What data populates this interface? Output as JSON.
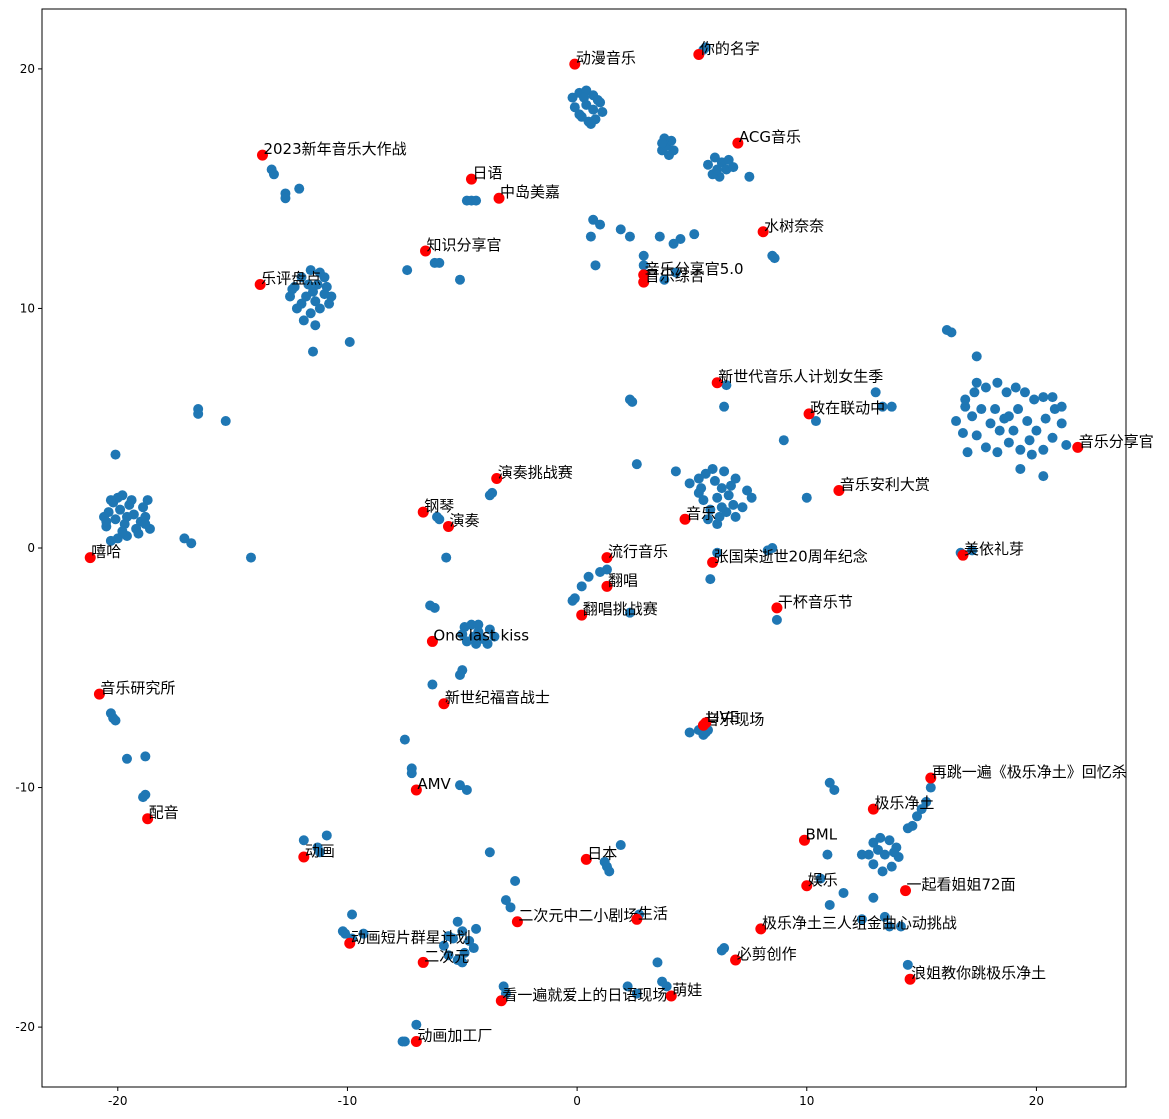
{
  "chart_data": {
    "type": "scatter",
    "title": "",
    "xlabel": "",
    "ylabel": "",
    "xlim": [
      -23.3,
      23.9
    ],
    "ylim": [
      -22.5,
      22.5
    ],
    "grid": false,
    "xticks": [
      -20,
      -10,
      0,
      10,
      20
    ],
    "yticks": [
      -20,
      -10,
      0,
      10,
      20
    ],
    "colors": {
      "points": "#1f77b4",
      "labeled": "#ff0000"
    },
    "points": [
      [
        -20.4,
        1.5
      ],
      [
        -20.2,
        1.9
      ],
      [
        -20.0,
        2.1
      ],
      [
        -19.8,
        2.2
      ],
      [
        -19.5,
        1.8
      ],
      [
        -19.3,
        1.4
      ],
      [
        -19.0,
        1.1
      ],
      [
        -19.2,
        0.8
      ],
      [
        -19.6,
        0.5
      ],
      [
        -20.0,
        0.4
      ],
      [
        -20.5,
        0.9
      ],
      [
        -20.6,
        1.3
      ],
      [
        -20.1,
        1.2
      ],
      [
        -19.7,
        1.0
      ],
      [
        -19.4,
        2.0
      ],
      [
        -18.9,
        1.7
      ],
      [
        -18.7,
        2.0
      ],
      [
        -18.8,
        1.3
      ],
      [
        -19.1,
        0.6
      ],
      [
        -20.3,
        0.3
      ],
      [
        -20.1,
        3.9
      ],
      [
        -18.6,
        0.8
      ],
      [
        -19.9,
        1.6
      ],
      [
        -20.3,
        2.0
      ],
      [
        -19.6,
        1.3
      ],
      [
        -19.8,
        0.7
      ],
      [
        -18.8,
        1.0
      ],
      [
        -20.5,
        1.1
      ],
      [
        -17.1,
        0.4
      ],
      [
        -16.8,
        0.2
      ],
      [
        -14.2,
        -0.4
      ],
      [
        -16.5,
        5.6
      ],
      [
        -16.5,
        5.8
      ],
      [
        -15.3,
        5.3
      ],
      [
        -12.3,
        10.9
      ],
      [
        -12.0,
        11.3
      ],
      [
        -11.6,
        11.6
      ],
      [
        -11.3,
        11.0
      ],
      [
        -11.0,
        10.6
      ],
      [
        -10.8,
        10.2
      ],
      [
        -11.2,
        10.0
      ],
      [
        -11.6,
        9.8
      ],
      [
        -12.0,
        10.2
      ],
      [
        -12.5,
        10.5
      ],
      [
        -11.8,
        10.5
      ],
      [
        -11.4,
        10.3
      ],
      [
        -11.0,
        11.3
      ],
      [
        -10.7,
        10.5
      ],
      [
        -11.9,
        9.5
      ],
      [
        -11.4,
        9.3
      ],
      [
        -11.5,
        8.2
      ],
      [
        -12.2,
        10.0
      ],
      [
        -11.7,
        11.0
      ],
      [
        -11.2,
        11.5
      ],
      [
        -10.9,
        10.9
      ],
      [
        -12.4,
        10.8
      ],
      [
        -11.5,
        10.7
      ],
      [
        -9.9,
        8.6
      ],
      [
        -13.3,
        15.8
      ],
      [
        -13.2,
        15.6
      ],
      [
        -12.7,
        14.8
      ],
      [
        -12.7,
        14.6
      ],
      [
        -12.1,
        15.0
      ],
      [
        -4.8,
        14.5
      ],
      [
        -4.6,
        14.5
      ],
      [
        -4.4,
        14.5
      ],
      [
        -7.4,
        11.6
      ],
      [
        -6.2,
        11.9
      ],
      [
        -6.0,
        11.9
      ],
      [
        -5.1,
        11.2
      ],
      [
        -0.2,
        18.8
      ],
      [
        0.1,
        19.0
      ],
      [
        0.4,
        19.1
      ],
      [
        0.7,
        18.9
      ],
      [
        1.0,
        18.6
      ],
      [
        1.1,
        18.2
      ],
      [
        0.8,
        17.9
      ],
      [
        0.5,
        17.8
      ],
      [
        0.2,
        18.0
      ],
      [
        -0.1,
        18.4
      ],
      [
        0.4,
        18.5
      ],
      [
        0.7,
        18.3
      ],
      [
        0.3,
        18.8
      ],
      [
        0.9,
        18.7
      ],
      [
        0.1,
        18.1
      ],
      [
        0.6,
        17.7
      ],
      [
        3.7,
        16.6
      ],
      [
        3.9,
        16.8
      ],
      [
        4.1,
        17.0
      ],
      [
        3.8,
        17.1
      ],
      [
        4.2,
        16.6
      ],
      [
        4.0,
        16.4
      ],
      [
        3.7,
        16.9
      ],
      [
        5.7,
        16.0
      ],
      [
        6.0,
        16.3
      ],
      [
        6.3,
        16.1
      ],
      [
        6.5,
        15.8
      ],
      [
        6.2,
        15.5
      ],
      [
        5.9,
        15.6
      ],
      [
        6.6,
        16.2
      ],
      [
        6.8,
        15.9
      ],
      [
        6.1,
        15.8
      ],
      [
        7.5,
        15.5
      ],
      [
        5.6,
        20.9
      ],
      [
        5.5,
        20.8
      ],
      [
        0.7,
        13.7
      ],
      [
        1.0,
        13.5
      ],
      [
        0.6,
        13.0
      ],
      [
        1.9,
        13.3
      ],
      [
        2.3,
        13.0
      ],
      [
        2.9,
        12.2
      ],
      [
        3.6,
        13.0
      ],
      [
        4.5,
        12.9
      ],
      [
        4.2,
        12.7
      ],
      [
        5.1,
        13.1
      ],
      [
        0.8,
        11.8
      ],
      [
        2.9,
        11.8
      ],
      [
        4.3,
        11.5
      ],
      [
        8.5,
        12.2
      ],
      [
        8.6,
        12.1
      ],
      [
        3.8,
        11.2
      ],
      [
        2.3,
        6.2
      ],
      [
        2.4,
        6.1
      ],
      [
        6.5,
        6.8
      ],
      [
        6.4,
        5.9
      ],
      [
        9.0,
        4.5
      ],
      [
        10.4,
        5.3
      ],
      [
        13.3,
        5.9
      ],
      [
        13.7,
        5.9
      ],
      [
        13.0,
        6.5
      ],
      [
        4.9,
        2.7
      ],
      [
        5.3,
        2.9
      ],
      [
        5.6,
        3.1
      ],
      [
        6.0,
        2.8
      ],
      [
        6.3,
        2.5
      ],
      [
        6.6,
        2.2
      ],
      [
        6.8,
        1.8
      ],
      [
        6.5,
        1.5
      ],
      [
        6.2,
        1.3
      ],
      [
        5.8,
        1.6
      ],
      [
        5.5,
        2.0
      ],
      [
        5.3,
        2.3
      ],
      [
        5.7,
        1.2
      ],
      [
        6.1,
        1.0
      ],
      [
        6.9,
        1.3
      ],
      [
        7.2,
        1.7
      ],
      [
        7.4,
        2.4
      ],
      [
        6.9,
        2.9
      ],
      [
        6.4,
        3.2
      ],
      [
        5.9,
        3.3
      ],
      [
        5.4,
        2.5
      ],
      [
        6.1,
        2.1
      ],
      [
        6.7,
        2.6
      ],
      [
        7.6,
        2.1
      ],
      [
        6.3,
        1.7
      ],
      [
        2.6,
        3.5
      ],
      [
        4.3,
        3.2
      ],
      [
        10.0,
        2.1
      ],
      [
        -0.1,
        -2.1
      ],
      [
        0.2,
        -1.6
      ],
      [
        0.5,
        -1.2
      ],
      [
        1.0,
        -1.0
      ],
      [
        1.3,
        -0.9
      ],
      [
        -0.2,
        -2.2
      ],
      [
        2.3,
        -2.7
      ],
      [
        5.8,
        -1.3
      ],
      [
        6.1,
        -0.2
      ],
      [
        8.3,
        -0.1
      ],
      [
        8.5,
        0.0
      ],
      [
        8.7,
        -3.0
      ],
      [
        -4.9,
        -3.3
      ],
      [
        -4.6,
        -3.2
      ],
      [
        -4.3,
        -3.5
      ],
      [
        -4.1,
        -3.8
      ],
      [
        -4.4,
        -4.0
      ],
      [
        -4.8,
        -3.9
      ],
      [
        -5.0,
        -3.6
      ],
      [
        -4.3,
        -3.2
      ],
      [
        -3.8,
        -3.4
      ],
      [
        -3.6,
        -3.7
      ],
      [
        -4.5,
        -3.7
      ],
      [
        -3.9,
        -4.0
      ],
      [
        -5.0,
        -5.1
      ],
      [
        -5.1,
        -5.3
      ],
      [
        -6.4,
        -2.4
      ],
      [
        -6.2,
        -2.5
      ],
      [
        -6.3,
        -5.7
      ],
      [
        -5.7,
        -0.4
      ],
      [
        -6.1,
        1.3
      ],
      [
        -6.0,
        1.2
      ],
      [
        -3.7,
        2.3
      ],
      [
        -3.8,
        2.2
      ],
      [
        -20.3,
        -6.9
      ],
      [
        -20.2,
        -7.1
      ],
      [
        -20.1,
        -7.2
      ],
      [
        -19.6,
        -8.8
      ],
      [
        -18.8,
        -8.7
      ],
      [
        -18.8,
        -10.3
      ],
      [
        -18.9,
        -10.4
      ],
      [
        -7.5,
        -8.0
      ],
      [
        -7.2,
        -9.2
      ],
      [
        -7.2,
        -9.4
      ],
      [
        -5.1,
        -9.9
      ],
      [
        -4.8,
        -10.1
      ],
      [
        -11.9,
        -12.2
      ],
      [
        -11.3,
        -12.5
      ],
      [
        -11.2,
        -12.7
      ],
      [
        -10.9,
        -12.0
      ],
      [
        -9.3,
        -16.1
      ],
      [
        -10.2,
        -16.0
      ],
      [
        -9.8,
        -15.3
      ],
      [
        -7.6,
        -20.6
      ],
      [
        -7.0,
        -19.9
      ],
      [
        -7.5,
        -20.6
      ],
      [
        -9.8,
        -16.3
      ],
      [
        -10.1,
        -16.1
      ],
      [
        -5.4,
        -16.3
      ],
      [
        -5.0,
        -16.0
      ],
      [
        -4.7,
        -16.4
      ],
      [
        -4.9,
        -16.9
      ],
      [
        -5.2,
        -17.2
      ],
      [
        -5.6,
        -17.0
      ],
      [
        -5.8,
        -16.6
      ],
      [
        -5.2,
        -15.6
      ],
      [
        -4.5,
        -16.7
      ],
      [
        -4.4,
        -15.9
      ],
      [
        -5.6,
        -16.2
      ],
      [
        -5.0,
        -17.3
      ],
      [
        -3.8,
        -12.7
      ],
      [
        -3.1,
        -14.7
      ],
      [
        -2.9,
        -15.0
      ],
      [
        -2.7,
        -13.9
      ],
      [
        -3.2,
        -18.3
      ],
      [
        -3.1,
        -18.6
      ],
      [
        1.3,
        -13.3
      ],
      [
        1.4,
        -13.5
      ],
      [
        1.2,
        -13.1
      ],
      [
        1.9,
        -12.4
      ],
      [
        2.7,
        -15.3
      ],
      [
        3.5,
        -17.3
      ],
      [
        3.7,
        -18.1
      ],
      [
        3.9,
        -18.3
      ],
      [
        2.2,
        -18.3
      ],
      [
        2.6,
        -18.6
      ],
      [
        6.4,
        -16.7
      ],
      [
        6.3,
        -16.8
      ],
      [
        5.3,
        -7.6
      ],
      [
        5.6,
        -7.7
      ],
      [
        5.7,
        -7.6
      ],
      [
        4.9,
        -7.7
      ],
      [
        5.5,
        -7.8
      ],
      [
        11.0,
        -9.8
      ],
      [
        11.2,
        -10.1
      ],
      [
        10.9,
        -12.8
      ],
      [
        10.6,
        -13.8
      ],
      [
        11.6,
        -14.4
      ],
      [
        12.4,
        -12.8
      ],
      [
        12.9,
        -12.3
      ],
      [
        13.2,
        -12.1
      ],
      [
        13.6,
        -12.2
      ],
      [
        13.9,
        -12.5
      ],
      [
        14.0,
        -12.9
      ],
      [
        13.7,
        -13.3
      ],
      [
        13.3,
        -13.5
      ],
      [
        12.9,
        -13.2
      ],
      [
        12.7,
        -12.8
      ],
      [
        13.4,
        -12.8
      ],
      [
        13.8,
        -12.7
      ],
      [
        13.1,
        -12.6
      ],
      [
        14.4,
        -11.7
      ],
      [
        14.6,
        -11.6
      ],
      [
        15.2,
        -10.6
      ],
      [
        15.0,
        -10.9
      ],
      [
        15.4,
        -10.0
      ],
      [
        14.8,
        -11.2
      ],
      [
        12.9,
        -14.6
      ],
      [
        13.4,
        -15.4
      ],
      [
        12.4,
        -15.5
      ],
      [
        13.6,
        -15.8
      ],
      [
        14.1,
        -15.8
      ],
      [
        14.4,
        -17.4
      ],
      [
        11.0,
        -14.9
      ],
      [
        16.5,
        5.3
      ],
      [
        16.8,
        4.8
      ],
      [
        17.2,
        5.5
      ],
      [
        17.6,
        5.8
      ],
      [
        18.0,
        5.2
      ],
      [
        18.4,
        4.9
      ],
      [
        18.8,
        5.5
      ],
      [
        19.2,
        5.8
      ],
      [
        19.6,
        5.3
      ],
      [
        20.0,
        4.9
      ],
      [
        20.4,
        5.4
      ],
      [
        20.8,
        5.8
      ],
      [
        21.1,
        5.2
      ],
      [
        20.7,
        4.6
      ],
      [
        20.3,
        4.1
      ],
      [
        19.8,
        3.9
      ],
      [
        19.3,
        4.1
      ],
      [
        18.8,
        4.4
      ],
      [
        18.3,
        4.0
      ],
      [
        17.8,
        4.2
      ],
      [
        17.4,
        4.7
      ],
      [
        16.9,
        5.9
      ],
      [
        17.3,
        6.5
      ],
      [
        17.8,
        6.7
      ],
      [
        18.3,
        6.9
      ],
      [
        18.7,
        6.5
      ],
      [
        19.1,
        6.7
      ],
      [
        19.5,
        6.5
      ],
      [
        19.9,
        6.2
      ],
      [
        20.3,
        6.3
      ],
      [
        20.7,
        6.3
      ],
      [
        21.1,
        5.9
      ],
      [
        21.3,
        4.3
      ],
      [
        20.3,
        3.0
      ],
      [
        19.3,
        3.3
      ],
      [
        17.0,
        4.0
      ],
      [
        17.4,
        8.0
      ],
      [
        17.4,
        6.9
      ],
      [
        16.3,
        9.0
      ],
      [
        16.1,
        9.1
      ],
      [
        16.9,
        6.2
      ],
      [
        18.6,
        5.4
      ],
      [
        19.0,
        4.9
      ],
      [
        19.7,
        4.5
      ],
      [
        18.2,
        5.8
      ],
      [
        16.7,
        -0.2
      ],
      [
        17.2,
        -0.1
      ]
    ],
    "labeled_points": [
      {
        "x": -21.2,
        "y": -0.4,
        "label": "嘻哈"
      },
      {
        "x": -20.8,
        "y": -6.1,
        "label": "音乐研究所"
      },
      {
        "x": -18.7,
        "y": -11.3,
        "label": "配音"
      },
      {
        "x": -13.7,
        "y": 16.4,
        "label": "2023新年音乐大作战"
      },
      {
        "x": -13.8,
        "y": 11.0,
        "label": "乐评盘点"
      },
      {
        "x": -11.9,
        "y": -12.9,
        "label": "动画"
      },
      {
        "x": -9.9,
        "y": -16.5,
        "label": "动画短片群星计划"
      },
      {
        "x": -7.0,
        "y": -20.6,
        "label": "动画加工厂"
      },
      {
        "x": -7.0,
        "y": -10.1,
        "label": "AMV"
      },
      {
        "x": -6.7,
        "y": -17.3,
        "label": "二次元"
      },
      {
        "x": -6.7,
        "y": 1.5,
        "label": "钢琴"
      },
      {
        "x": -6.6,
        "y": 12.4,
        "label": "知识分享官"
      },
      {
        "x": -6.3,
        "y": -3.9,
        "label": "One last kiss"
      },
      {
        "x": -5.8,
        "y": -6.5,
        "label": "新世纪福音战士"
      },
      {
        "x": -5.6,
        "y": 0.9,
        "label": "演奏"
      },
      {
        "x": -4.6,
        "y": 15.4,
        "label": "日语"
      },
      {
        "x": -3.4,
        "y": 14.6,
        "label": "中岛美嘉"
      },
      {
        "x": -3.5,
        "y": 2.9,
        "label": "演奏挑战赛"
      },
      {
        "x": -3.3,
        "y": -18.9,
        "label": "看一遍就爱上的日语现场"
      },
      {
        "x": -2.6,
        "y": -15.6,
        "label": "二次元中二小剧场"
      },
      {
        "x": -0.1,
        "y": 20.2,
        "label": "动漫音乐"
      },
      {
        "x": 0.2,
        "y": -2.8,
        "label": "翻唱挑战赛"
      },
      {
        "x": 0.4,
        "y": -13.0,
        "label": "日本"
      },
      {
        "x": 1.3,
        "y": -0.4,
        "label": "流行音乐"
      },
      {
        "x": 1.3,
        "y": -1.6,
        "label": "翻唱"
      },
      {
        "x": 2.6,
        "y": -15.5,
        "label": "生活"
      },
      {
        "x": 2.9,
        "y": 11.4,
        "label": "音乐分享官5.0"
      },
      {
        "x": 2.9,
        "y": 11.1,
        "label": "音乐综合"
      },
      {
        "x": 4.1,
        "y": -18.7,
        "label": "萌娃"
      },
      {
        "x": 4.7,
        "y": 1.2,
        "label": "音乐"
      },
      {
        "x": 5.3,
        "y": 20.6,
        "label": "你的名字"
      },
      {
        "x": 5.5,
        "y": -7.4,
        "label": "音乐现场"
      },
      {
        "x": 5.6,
        "y": -7.3,
        "label": "LIVE"
      },
      {
        "x": 5.9,
        "y": -0.6,
        "label": "张国荣逝世20周年纪念"
      },
      {
        "x": 6.1,
        "y": 6.9,
        "label": "新世代音乐人计划女生季"
      },
      {
        "x": 6.9,
        "y": -17.2,
        "label": "必剪创作"
      },
      {
        "x": 7.0,
        "y": 16.9,
        "label": "ACG音乐"
      },
      {
        "x": 8.0,
        "y": -15.9,
        "label": "极乐净土三人组金曲心动挑战"
      },
      {
        "x": 8.1,
        "y": 13.2,
        "label": "水树奈奈"
      },
      {
        "x": 8.7,
        "y": -2.5,
        "label": "干杯音乐节"
      },
      {
        "x": 9.9,
        "y": -12.2,
        "label": "BML"
      },
      {
        "x": 10.0,
        "y": -14.1,
        "label": "娱乐"
      },
      {
        "x": 10.1,
        "y": 5.6,
        "label": "政在联动中"
      },
      {
        "x": 11.4,
        "y": 2.4,
        "label": "音乐安利大赏"
      },
      {
        "x": 12.9,
        "y": -10.9,
        "label": "极乐净土"
      },
      {
        "x": 14.3,
        "y": -14.3,
        "label": "一起看姐姐72面"
      },
      {
        "x": 14.5,
        "y": -18.0,
        "label": "浪姐教你跳极乐净土"
      },
      {
        "x": 15.4,
        "y": -9.6,
        "label": "再跳一遍《极乐净土》回忆杀"
      },
      {
        "x": 16.8,
        "y": -0.3,
        "label": "美依礼芽"
      },
      {
        "x": 21.8,
        "y": 4.2,
        "label": "音乐分享官"
      }
    ]
  }
}
